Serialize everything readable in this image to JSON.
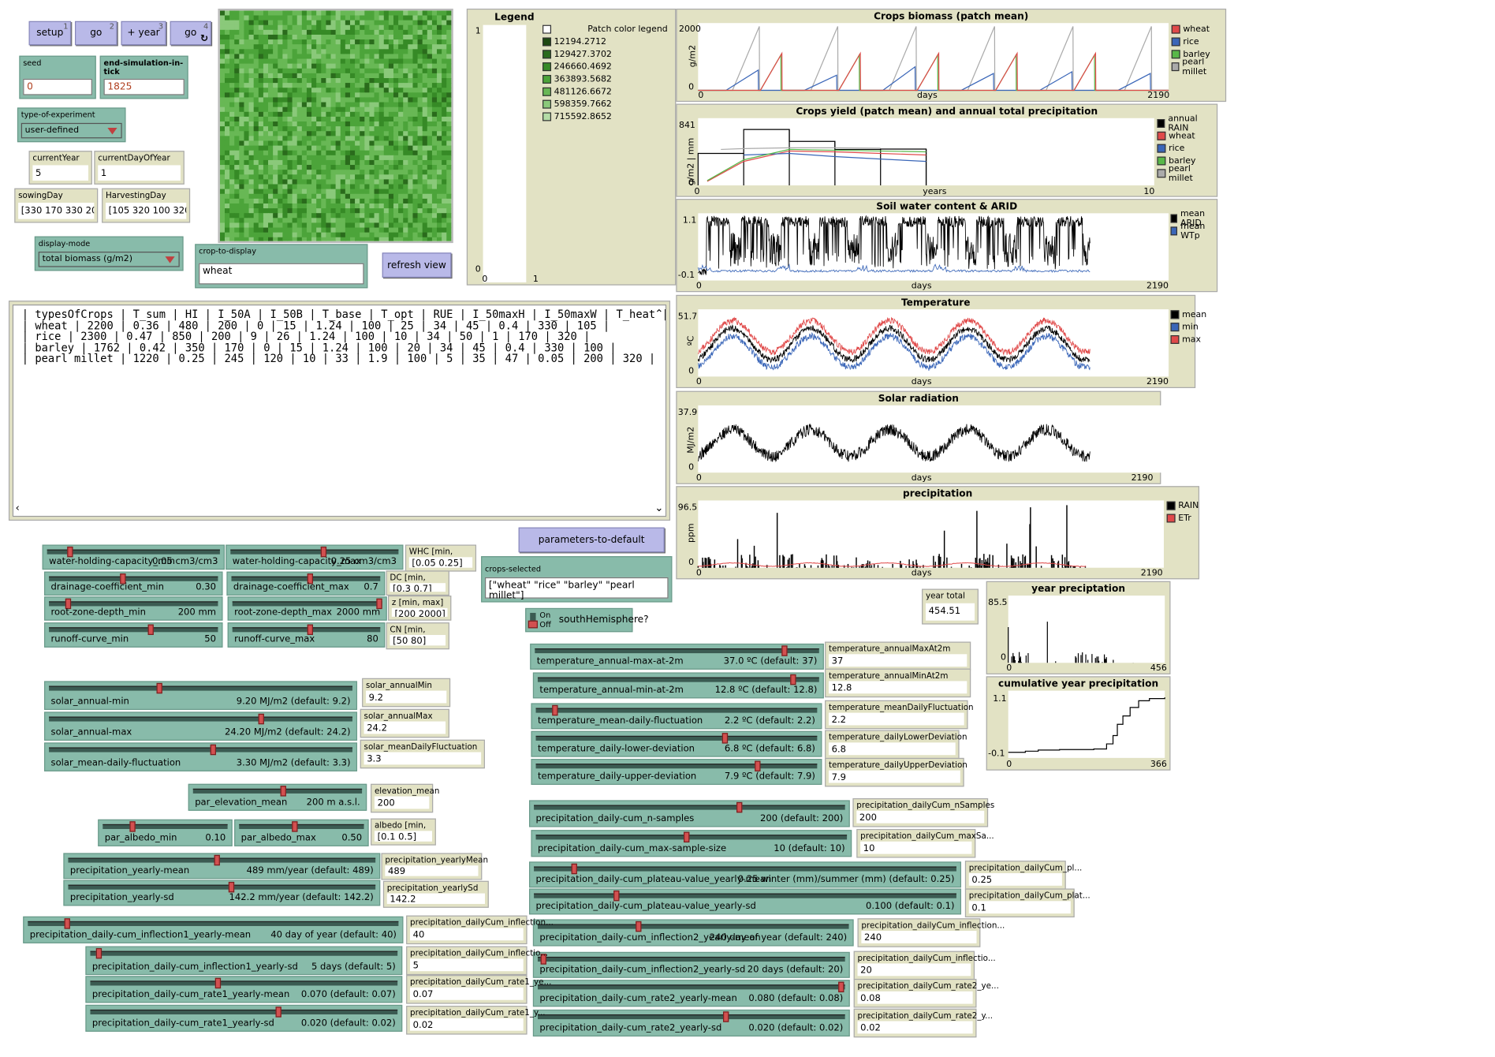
{
  "buttons": {
    "setup": {
      "label": "setup",
      "key": "1"
    },
    "go_once": {
      "label": "go",
      "key": "2"
    },
    "add_year": {
      "label": "+ year",
      "key": "3"
    },
    "go_forever": {
      "label": "go",
      "key": "4"
    },
    "refresh_view": {
      "label": "refresh view"
    },
    "parameters_to_default": {
      "label": "parameters-to-default"
    }
  },
  "inputs": {
    "seed": {
      "label": "seed",
      "value": "0"
    },
    "end_simulation": {
      "label": "end-simulation-in-tick",
      "value": "1825"
    },
    "crop_to_display": {
      "label": "crop-to-display",
      "value": "wheat"
    },
    "crops_selected": {
      "label": "crops-selected",
      "value": "[\"wheat\" \"rice\" \"barley\" \"pearl millet\"]"
    }
  },
  "choosers": {
    "type_of_experiment": {
      "label": "type-of-experiment",
      "value": "user-defined"
    },
    "display_mode": {
      "label": "display-mode",
      "value": "total biomass (g/m2)"
    }
  },
  "monitors": {
    "currentYear": {
      "label": "currentYear",
      "value": "5"
    },
    "currentDayOfYear": {
      "label": "currentDayOfYear",
      "value": "1"
    },
    "sowingDay": {
      "label": "sowingDay",
      "value": "[330 170 330 200]"
    },
    "harvestingDay": {
      "label": "HarvestingDay",
      "value": "[105 320 100 320]"
    },
    "year_total": {
      "label": "year total",
      "value": "454.51"
    },
    "whc": {
      "label": "WHC [min, max]",
      "value": "[0.05 0.25]"
    },
    "dc": {
      "label": "DC [min, max]",
      "value": "[0.3 0.7]"
    },
    "z": {
      "label": "z [min, max]",
      "value": "[200 2000]"
    },
    "cn": {
      "label": "CN [min, max]",
      "value": "[50 80]"
    },
    "solar_annualMin": {
      "label": "solar_annualMin",
      "value": "9.2"
    },
    "solar_annualMax": {
      "label": "solar_annualMax",
      "value": "24.2"
    },
    "solar_meanDailyFluctuation": {
      "label": "solar_meanDailyFluctuation",
      "value": "3.3"
    },
    "elevation_mean": {
      "label": "elevation_mean",
      "value": "200"
    },
    "albedo": {
      "label": "albedo [min, max]",
      "value": "[0.1 0.5]"
    },
    "precipitation_yearlyMean": {
      "label": "precipitation_yearlyMean",
      "value": "489"
    },
    "precipitation_yearlySd": {
      "label": "precipitation_yearlySd",
      "value": "142.2"
    },
    "inflection1_mean": {
      "label": "precipitation_dailyCum_inflection...",
      "value": "40"
    },
    "inflection1_sd": {
      "label": "precipitation_dailyCum_inflectio...",
      "value": "5"
    },
    "rate1_mean": {
      "label": "precipitation_dailyCum_rate1_ye...",
      "value": "0.07"
    },
    "rate1_sd": {
      "label": "precipitation_dailyCum_rate1_y...",
      "value": "0.02"
    },
    "temp_max": {
      "label": "temperature_annualMaxAt2m",
      "value": "37"
    },
    "temp_min": {
      "label": "temperature_annualMinAt2m",
      "value": "12.8"
    },
    "temp_fluct": {
      "label": "temperature_meanDailyFluctuation",
      "value": "2.2"
    },
    "temp_lower": {
      "label": "temperature_dailyLowerDeviation",
      "value": "6.8"
    },
    "temp_upper": {
      "label": "temperature_dailyUpperDeviation",
      "value": "7.9"
    },
    "nSamples": {
      "label": "precipitation_dailyCum_nSamples",
      "value": "200"
    },
    "maxSample": {
      "label": "precipitation_dailyCum_maxSa...",
      "value": "10"
    },
    "plateau_mean": {
      "label": "precipitation_dailyCum_pl...",
      "value": "0.25"
    },
    "plateau_sd": {
      "label": "precipitation_dailyCum_plat...",
      "value": "0.1"
    },
    "inflection2_mean": {
      "label": "precipitation_dailyCum_inflection...",
      "value": "240"
    },
    "inflection2_sd": {
      "label": "precipitation_dailyCum_inflectio...",
      "value": "20"
    },
    "rate2_mean": {
      "label": "precipitation_dailyCum_rate2_ye...",
      "value": "0.08"
    },
    "rate2_sd": {
      "label": "precipitation_dailyCum_rate2_y...",
      "value": "0.02"
    }
  },
  "switch": {
    "on": "On",
    "off": "Off",
    "label": "southHemisphere?"
  },
  "sliders": [
    {
      "id": "whc_min",
      "name": "water-holding-capacity_min",
      "value": "0.05 cm3/cm3",
      "pos": 0.12
    },
    {
      "id": "whc_max",
      "name": "water-holding-capacity_max",
      "value": "0.25 cm3/cm3",
      "pos": 0.55
    },
    {
      "id": "dc_min",
      "name": "drainage-coefficient_min",
      "value": "0.30",
      "pos": 0.43
    },
    {
      "id": "dc_max",
      "name": "drainage-coefficient_max",
      "value": "0.7",
      "pos": 0.52
    },
    {
      "id": "z_min",
      "name": "root-zone-depth_min",
      "value": "200 mm",
      "pos": 0.1
    },
    {
      "id": "z_max",
      "name": "root-zone-depth_max",
      "value": "2000 mm",
      "pos": 0.99
    },
    {
      "id": "cn_min",
      "name": "runoff-curve_min",
      "value": "50",
      "pos": 0.6
    },
    {
      "id": "cn_max",
      "name": "runoff-curve_max",
      "value": "80",
      "pos": 0.52
    },
    {
      "id": "solar_min",
      "name": "solar_annual-min",
      "value": "9.20 MJ/m2 (default: 9.2)",
      "pos": 0.36
    },
    {
      "id": "solar_max",
      "name": "solar_annual-max",
      "value": "24.20 MJ/m2 (default: 24.2)",
      "pos": 0.7
    },
    {
      "id": "solar_fluct",
      "name": "solar_mean-daily-fluctuation",
      "value": "3.30 MJ/m2 (default: 3.3)",
      "pos": 0.54
    },
    {
      "id": "elev",
      "name": "par_elevation_mean",
      "value": "200 m a.s.l.",
      "pos": 0.53
    },
    {
      "id": "alb_min",
      "name": "par_albedo_min",
      "value": "0.10",
      "pos": 0.22
    },
    {
      "id": "alb_max",
      "name": "par_albedo_max",
      "value": "0.50",
      "pos": 0.44
    },
    {
      "id": "p_mean",
      "name": "precipitation_yearly-mean",
      "value": "489 mm/year (default: 489)",
      "pos": 0.48
    },
    {
      "id": "p_sd",
      "name": "precipitation_yearly-sd",
      "value": "142.2 mm/year (default: 142.2)",
      "pos": 0.53
    },
    {
      "id": "i1_mean",
      "name": "precipitation_daily-cum_inflection1_yearly-mean",
      "value": "40 day of year (default: 40)",
      "pos": 0.1
    },
    {
      "id": "i1_sd",
      "name": "precipitation_daily-cum_inflection1_yearly-sd",
      "value": "5 days (default: 5)",
      "pos": 0.02
    },
    {
      "id": "r1_mean",
      "name": "precipitation_daily-cum_rate1_yearly-mean",
      "value": "0.070 (default: 0.07)",
      "pos": 0.41
    },
    {
      "id": "r1_sd",
      "name": "precipitation_daily-cum_rate1_yearly-sd",
      "value": "0.020 (default: 0.02)",
      "pos": 0.61
    },
    {
      "id": "t_max",
      "name": "temperature_annual-max-at-2m",
      "value": "37.0 ºC (default: 37)",
      "pos": 0.88
    },
    {
      "id": "t_min",
      "name": "temperature_annual-min-at-2m",
      "value": "12.8 ºC (default: 12.8)",
      "pos": 0.91
    },
    {
      "id": "t_fluct",
      "name": "temperature_mean-daily-fluctuation",
      "value": "2.2 ºC (default: 2.2)",
      "pos": 0.06
    },
    {
      "id": "t_lower",
      "name": "temperature_daily-lower-deviation",
      "value": "6.8 ºC (default: 6.8)",
      "pos": 0.67
    },
    {
      "id": "t_upper",
      "name": "temperature_daily-upper-deviation",
      "value": "7.9 ºC (default: 7.9)",
      "pos": 0.79
    },
    {
      "id": "n_samples",
      "name": "precipitation_daily-cum_n-samples",
      "value": "200 (default: 200)",
      "pos": 0.66
    },
    {
      "id": "max_sample",
      "name": "precipitation_daily-cum_max-sample-size",
      "value": "10 (default: 10)",
      "pos": 0.48
    },
    {
      "id": "pl_mean",
      "name": "precipitation_daily-cum_plateau-value_yearly-mean",
      "value": "0.25 winter (mm)/summer (mm) (default: 0.25)",
      "pos": 0.09
    },
    {
      "id": "pl_sd",
      "name": "precipitation_daily-cum_plateau-value_yearly-sd",
      "value": "0.100 (default: 0.1)",
      "pos": 0.19
    },
    {
      "id": "i2_mean",
      "name": "precipitation_daily-cum_inflection2_yearly-mean",
      "value": "240 day of year (default: 240)",
      "pos": 0.32
    },
    {
      "id": "i2_sd",
      "name": "precipitation_daily-cum_inflection2_yearly-sd",
      "value": "20 days (default: 20)",
      "pos": 0.01
    },
    {
      "id": "r2_mean",
      "name": "precipitation_daily-cum_rate2_yearly-mean",
      "value": "0.080 (default: 0.08)",
      "pos": 0.99
    },
    {
      "id": "r2_sd",
      "name": "precipitation_daily-cum_rate2_yearly-sd",
      "value": "0.020 (default: 0.02)",
      "pos": 0.61
    }
  ],
  "output": {
    "lines": [
      " | typesOfCrops | T_sum | HI | I_50A | I_50B | T_base | T_opt | RUE | I_50maxH | I_50maxW | T_heat |",
      " | wheat | 2200 | 0.36 | 480 | 200 | 0 | 15 | 1.24 | 100 | 25 | 34 | 45 | 0.4 | 330 | 105 |",
      " | rice | 2300 | 0.47 | 850 | 200 | 9 | 26 | 1.24 | 100 | 10 | 34 | 50 | 1 | 170 | 320 |",
      " | barley | 1762 | 0.42 | 350 | 170 | 0 | 15 | 1.24 | 100 | 20 | 34 | 45 | 0.4 | 330 | 100 |",
      " | pearl millet | 1220 | 0.25 | 245 | 120 | 10 | 33 | 1.9 | 100 | 5 | 35 | 47 | 0.05 | 200 | 320 |"
    ]
  },
  "colors": {
    "wheat": "#e04a4a",
    "rice": "#3a66b8",
    "barley": "#58b848",
    "pearl_millet": "#aaaaaa",
    "black": "#000000",
    "red": "#e04a4a",
    "blue": "#3a66b8"
  },
  "legend_plot": {
    "title": "Legend",
    "header": "Patch color legend",
    "y_max": "1",
    "y_min": "0",
    "x_min": "0",
    "x_max": "1",
    "entries": [
      {
        "label": "12194.2712",
        "color": "#1e4a12"
      },
      {
        "label": "129427.3702",
        "color": "#2a6b1c"
      },
      {
        "label": "246660.4692",
        "color": "#368a26"
      },
      {
        "label": "363893.5682",
        "color": "#4ca43a"
      },
      {
        "label": "481126.6672",
        "color": "#68b855"
      },
      {
        "label": "598359.7662",
        "color": "#8ac97a"
      },
      {
        "label": "715592.8652",
        "color": "#b4dca6"
      }
    ]
  },
  "chart_data": [
    {
      "type": "line",
      "title": "Crops biomass (patch mean)",
      "xlabel": "days",
      "ylabel": "g/m2",
      "xlim": [
        0,
        2190
      ],
      "ylim": [
        0,
        2000
      ],
      "x_min_label": "0",
      "x_max_label": "2190",
      "y_min_label": "0",
      "y_max_label": "2000",
      "series": [
        {
          "name": "wheat",
          "color": "#e04a4a",
          "cycles": [
            {
              "start": 290,
              "end": 390,
              "peak": 1100
            },
            {
              "start": 655,
              "end": 755,
              "peak": 1100
            },
            {
              "start": 1020,
              "end": 1120,
              "peak": 1100
            },
            {
              "start": 1385,
              "end": 1485,
              "peak": 1100
            },
            {
              "start": 1750,
              "end": 1850,
              "peak": 1100
            }
          ]
        },
        {
          "name": "rice",
          "color": "#3a66b8",
          "cycles": [
            {
              "start": 130,
              "end": 280,
              "peak": 600
            },
            {
              "start": 495,
              "end": 645,
              "peak": 450
            },
            {
              "start": 860,
              "end": 1010,
              "peak": 700
            },
            {
              "start": 1225,
              "end": 1375,
              "peak": 500
            },
            {
              "start": 1590,
              "end": 1740,
              "peak": 550
            },
            {
              "start": 1955,
              "end": 2105,
              "peak": 500
            }
          ]
        },
        {
          "name": "barley",
          "color": "#58b848",
          "cycles": [
            {
              "start": 290,
              "end": 385,
              "peak": 1050
            },
            {
              "start": 655,
              "end": 750,
              "peak": 1050
            },
            {
              "start": 1020,
              "end": 1115,
              "peak": 1050
            },
            {
              "start": 1385,
              "end": 1480,
              "peak": 1050
            },
            {
              "start": 1750,
              "end": 1845,
              "peak": 1050
            }
          ]
        },
        {
          "name": "pearl millet",
          "color": "#aaaaaa",
          "cycles": [
            {
              "start": 160,
              "end": 285,
              "peak": 1900
            },
            {
              "start": 525,
              "end": 650,
              "peak": 1900
            },
            {
              "start": 890,
              "end": 1015,
              "peak": 1900
            },
            {
              "start": 1255,
              "end": 1380,
              "peak": 1900
            },
            {
              "start": 1620,
              "end": 1745,
              "peak": 1900
            },
            {
              "start": 1985,
              "end": 2110,
              "peak": 1900
            }
          ]
        }
      ]
    },
    {
      "type": "line",
      "title": "Crops yield (patch mean) and annual total precipitation",
      "xlabel": "years",
      "ylabel": "g/m2 | mm",
      "xlim": [
        0,
        10
      ],
      "ylim": [
        0,
        841
      ],
      "x_min_label": "0",
      "x_max_label": "10",
      "y_min_label": "0",
      "y_max_label": "841",
      "rain": [
        {
          "x0": 0,
          "x1": 1,
          "y": 400
        },
        {
          "x0": 1,
          "x2": 2,
          "x1": 2,
          "y": 700
        },
        {
          "x0": 2,
          "x1": 3,
          "y": 550
        },
        {
          "x0": 3,
          "x1": 4,
          "y": 450
        },
        {
          "x0": 4,
          "x1": 5,
          "y": 454.51
        }
      ],
      "series": [
        {
          "name": "annual RAIN",
          "color": "#000000"
        },
        {
          "name": "wheat",
          "color": "#e04a4a",
          "x": [
            0.2,
            1,
            2,
            3,
            4,
            5
          ],
          "y": [
            50,
            300,
            430,
            420,
            400,
            380
          ]
        },
        {
          "name": "rice",
          "color": "#3a66b8",
          "x": [
            1,
            2,
            3,
            4,
            5
          ],
          "y": [
            380,
            400,
            360,
            330,
            300
          ]
        },
        {
          "name": "barley",
          "color": "#58b848",
          "x": [
            0.2,
            1,
            2,
            3,
            4,
            5
          ],
          "y": [
            60,
            320,
            450,
            440,
            430,
            420
          ]
        },
        {
          "name": "pearl millet",
          "color": "#aaaaaa",
          "x": [
            0.5,
            1,
            2,
            3,
            4
          ],
          "y": [
            450,
            460,
            470,
            470,
            465
          ]
        }
      ]
    },
    {
      "type": "line",
      "title": "Soil water content & ARID",
      "xlabel": "days",
      "xlim": [
        0,
        2190
      ],
      "ylim": [
        -0.1,
        1.1
      ],
      "x_min_label": "0",
      "x_max_label": "2190",
      "y_min_label": "-0.1",
      "y_max_label": "1.1",
      "series": [
        {
          "name": "mean ARID",
          "color": "#000000"
        },
        {
          "name": "mean WTp",
          "color": "#3a66b8"
        }
      ]
    },
    {
      "type": "line",
      "title": "Temperature",
      "xlabel": "days",
      "ylabel": "ºC",
      "xlim": [
        0,
        2190
      ],
      "ylim": [
        0,
        51.7
      ],
      "x_min_label": "0",
      "x_max_label": "2190",
      "y_min_label": "0",
      "y_max_label": "51.7",
      "series": [
        {
          "name": "mean",
          "color": "#000000",
          "mean": 25,
          "amp": 12
        },
        {
          "name": "min",
          "color": "#3a66b8",
          "mean": 19,
          "amp": 12
        },
        {
          "name": "max",
          "color": "#e04a4a",
          "mean": 31,
          "amp": 12
        }
      ]
    },
    {
      "type": "line",
      "title": "Solar radiation",
      "xlabel": "days",
      "ylabel": "MJ/m2",
      "xlim": [
        0,
        2190
      ],
      "ylim": [
        0,
        37.9
      ],
      "x_min_label": "0",
      "x_max_label": "2190",
      "y_min_label": "0",
      "y_max_label": "37.9",
      "series": [
        {
          "name": "solar",
          "color": "#000000",
          "mean": 16.7,
          "amp": 7.5
        }
      ]
    },
    {
      "type": "bar",
      "title": "precipitation",
      "xlabel": "days",
      "ylabel": "ppm",
      "xlim": [
        0,
        2190
      ],
      "ylim": [
        0,
        96.5
      ],
      "x_min_label": "0",
      "x_max_label": "2190",
      "y_min_label": "0",
      "y_max_label": "96.5",
      "series": [
        {
          "name": "RAIN",
          "color": "#000000"
        },
        {
          "name": "ETr",
          "color": "#e04a4a"
        }
      ]
    },
    {
      "type": "bar",
      "title": "year preciptation",
      "xlim": [
        0,
        456
      ],
      "ylim": [
        0,
        85.5
      ],
      "x_min_label": "0",
      "x_max_label": "456",
      "y_min_label": "0",
      "y_max_label": "85.5"
    },
    {
      "type": "line",
      "title": "cumulative year precipitation",
      "xlim": [
        0,
        366
      ],
      "ylim": [
        -0.1,
        1.1
      ],
      "x_min_label": "0",
      "x_max_label": "366",
      "y_min_label": "-0.1",
      "y_max_label": "1.1"
    }
  ]
}
